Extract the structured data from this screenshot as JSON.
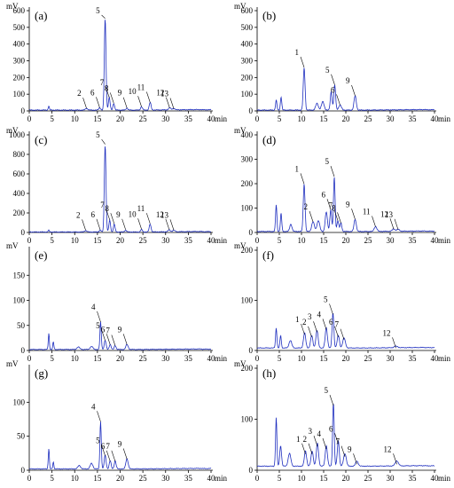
{
  "colors": {
    "trace": "#1f2fbf",
    "axis": "#000000"
  },
  "chart_data": [
    {
      "type": "line",
      "panel_label": "(a)",
      "ylabel": "mV",
      "xlabel": "min",
      "xlim": [
        0,
        40
      ],
      "ylim": [
        0,
        600
      ],
      "xticks": [
        0,
        5,
        10,
        15,
        20,
        25,
        30,
        35,
        40
      ],
      "yticks": [
        0,
        100,
        200,
        300,
        400,
        500,
        600
      ],
      "baseline": 5,
      "peaks": [
        [
          4.3,
          25,
          0.12
        ],
        [
          12.6,
          10,
          0.25
        ],
        [
          15.5,
          14,
          0.2
        ],
        [
          16.7,
          548,
          0.18
        ],
        [
          17.6,
          75,
          0.18
        ],
        [
          18.6,
          40,
          0.18
        ],
        [
          21.5,
          12,
          0.2
        ],
        [
          24.7,
          20,
          0.2
        ],
        [
          26.6,
          45,
          0.2
        ],
        [
          30.9,
          12,
          0.25
        ],
        [
          31.8,
          8,
          0.25
        ]
      ],
      "labels": [
        {
          "text": "2",
          "x": 12.6,
          "y": 10
        },
        {
          "text": "5",
          "x": 16.7,
          "y": 548
        },
        {
          "text": "6",
          "x": 15.5,
          "y": 14
        },
        {
          "text": "7",
          "x": 17.6,
          "y": 75
        },
        {
          "text": "8",
          "x": 18.6,
          "y": 40
        },
        {
          "text": "9",
          "x": 21.5,
          "y": 12
        },
        {
          "text": "10",
          "x": 24.7,
          "y": 20
        },
        {
          "text": "11",
          "x": 26.6,
          "y": 45
        },
        {
          "text": "12",
          "x": 30.9,
          "y": 12
        },
        {
          "text": "13",
          "x": 31.8,
          "y": 8
        }
      ]
    },
    {
      "type": "line",
      "panel_label": "(b)",
      "ylabel": "mV",
      "xlabel": "min",
      "xlim": [
        0,
        40
      ],
      "ylim": [
        0,
        600
      ],
      "xticks": [
        0,
        5,
        10,
        15,
        20,
        25,
        30,
        35,
        40
      ],
      "yticks": [
        0,
        100,
        200,
        300,
        400,
        500,
        600
      ],
      "baseline": 5,
      "peaks": [
        [
          4.3,
          60,
          0.15
        ],
        [
          5.4,
          80,
          0.15
        ],
        [
          10.6,
          255,
          0.2
        ],
        [
          13.5,
          40,
          0.3
        ],
        [
          14.8,
          50,
          0.3
        ],
        [
          16.7,
          110,
          0.2
        ],
        [
          17.5,
          150,
          0.2
        ],
        [
          18.7,
          30,
          0.3
        ],
        [
          22.1,
          85,
          0.25
        ]
      ],
      "labels": [
        {
          "text": "1",
          "x": 10.6,
          "y": 255
        },
        {
          "text": "5",
          "x": 17.5,
          "y": 150
        },
        {
          "text": "6",
          "x": 18.7,
          "y": 30
        },
        {
          "text": "9",
          "x": 22.1,
          "y": 85
        }
      ]
    },
    {
      "type": "line",
      "panel_label": "(c)",
      "ylabel": "mV",
      "xlabel": "min",
      "xlim": [
        0,
        40
      ],
      "ylim": [
        0,
        1000
      ],
      "xticks": [
        0,
        5,
        10,
        15,
        20,
        25,
        30,
        35,
        40
      ],
      "yticks": [
        0,
        200,
        400,
        600,
        800,
        1000
      ],
      "baseline": 5,
      "peaks": [
        [
          4.3,
          20,
          0.12
        ],
        [
          12.4,
          15,
          0.25
        ],
        [
          15.6,
          20,
          0.2
        ],
        [
          16.7,
          895,
          0.18
        ],
        [
          17.7,
          120,
          0.18
        ],
        [
          18.7,
          80,
          0.18
        ],
        [
          21.2,
          20,
          0.2
        ],
        [
          24.7,
          25,
          0.2
        ],
        [
          26.6,
          80,
          0.2
        ],
        [
          30.8,
          20,
          0.25
        ],
        [
          31.8,
          15,
          0.25
        ]
      ],
      "labels": [
        {
          "text": "2",
          "x": 12.4,
          "y": 15
        },
        {
          "text": "5",
          "x": 16.7,
          "y": 895
        },
        {
          "text": "6",
          "x": 15.6,
          "y": 20
        },
        {
          "text": "7",
          "x": 17.7,
          "y": 120
        },
        {
          "text": "8",
          "x": 18.7,
          "y": 80
        },
        {
          "text": "9",
          "x": 21.2,
          "y": 20
        },
        {
          "text": "10",
          "x": 24.7,
          "y": 25
        },
        {
          "text": "11",
          "x": 26.6,
          "y": 80
        },
        {
          "text": "12",
          "x": 30.8,
          "y": 20
        },
        {
          "text": "13",
          "x": 31.8,
          "y": 15
        }
      ]
    },
    {
      "type": "line",
      "panel_label": "(d)",
      "ylabel": "mV",
      "xlabel": "min",
      "xlim": [
        0,
        40
      ],
      "ylim": [
        0,
        400
      ],
      "xticks": [
        0,
        5,
        10,
        15,
        20,
        25,
        30,
        35,
        40
      ],
      "yticks": [
        0,
        100,
        200,
        300,
        400
      ],
      "baseline": 4,
      "peaks": [
        [
          4.3,
          110,
          0.15
        ],
        [
          5.4,
          75,
          0.15
        ],
        [
          7.6,
          30,
          0.25
        ],
        [
          10.6,
          195,
          0.2
        ],
        [
          12.6,
          40,
          0.3
        ],
        [
          13.8,
          45,
          0.3
        ],
        [
          15.6,
          80,
          0.25
        ],
        [
          16.6,
          90,
          0.2
        ],
        [
          17.4,
          225,
          0.18
        ],
        [
          18.2,
          45,
          0.2
        ],
        [
          18.9,
          35,
          0.2
        ],
        [
          22.1,
          50,
          0.25
        ],
        [
          26.7,
          20,
          0.3
        ],
        [
          30.8,
          10,
          0.3
        ],
        [
          31.8,
          8,
          0.3
        ]
      ],
      "labels": [
        {
          "text": "1",
          "x": 10.6,
          "y": 195
        },
        {
          "text": "2",
          "x": 12.6,
          "y": 40
        },
        {
          "text": "5",
          "x": 17.4,
          "y": 225
        },
        {
          "text": "6",
          "x": 16.6,
          "y": 90
        },
        {
          "text": "7",
          "x": 18.2,
          "y": 45
        },
        {
          "text": "8",
          "x": 18.9,
          "y": 35
        },
        {
          "text": "9",
          "x": 22.1,
          "y": 50
        },
        {
          "text": "11",
          "x": 26.7,
          "y": 20
        },
        {
          "text": "12",
          "x": 30.8,
          "y": 10
        },
        {
          "text": "13",
          "x": 31.8,
          "y": 8
        }
      ]
    },
    {
      "type": "line",
      "panel_label": "(e)",
      "ylabel": "mV",
      "xlabel": "min",
      "xlim": [
        0,
        40
      ],
      "ylim": [
        0,
        200
      ],
      "xticks": [
        0,
        5,
        10,
        15,
        20,
        25,
        30,
        35,
        40
      ],
      "yticks": [
        0,
        50,
        100,
        150
      ],
      "baseline": 2,
      "peaks": [
        [
          4.3,
          32,
          0.12
        ],
        [
          5.3,
          15,
          0.12
        ],
        [
          10.8,
          5,
          0.3
        ],
        [
          13.7,
          6,
          0.3
        ],
        [
          15.7,
          55,
          0.15
        ],
        [
          16.7,
          18,
          0.2
        ],
        [
          17.8,
          10,
          0.2
        ],
        [
          18.9,
          8,
          0.2
        ],
        [
          21.5,
          10,
          0.25
        ]
      ],
      "labels": [
        {
          "text": "4",
          "x": 15.7,
          "y": 55
        },
        {
          "text": "5",
          "x": 16.7,
          "y": 18
        },
        {
          "text": "6",
          "x": 17.8,
          "y": 10
        },
        {
          "text": "7",
          "x": 18.9,
          "y": 8
        },
        {
          "text": "9",
          "x": 21.5,
          "y": 10
        }
      ]
    },
    {
      "type": "line",
      "panel_label": "(f)",
      "ylabel": "mV",
      "xlabel": "min",
      "xlim": [
        0,
        40
      ],
      "ylim": [
        0,
        200
      ],
      "xticks": [
        0,
        5,
        10,
        15,
        20,
        25,
        30,
        35,
        40
      ],
      "yticks": [
        0,
        100,
        200
      ],
      "baseline": 5,
      "peaks": [
        [
          4.3,
          40,
          0.15
        ],
        [
          5.3,
          25,
          0.15
        ],
        [
          7.5,
          15,
          0.3
        ],
        [
          10.7,
          30,
          0.25
        ],
        [
          12.3,
          25,
          0.25
        ],
        [
          13.5,
          35,
          0.25
        ],
        [
          15.6,
          40,
          0.25
        ],
        [
          17.1,
          70,
          0.2
        ],
        [
          18.3,
          25,
          0.25
        ],
        [
          19.6,
          20,
          0.3
        ],
        [
          31.3,
          3,
          0.4
        ]
      ],
      "labels": [
        {
          "text": "1",
          "x": 10.7,
          "y": 30
        },
        {
          "text": "2",
          "x": 12.3,
          "y": 25
        },
        {
          "text": "3",
          "x": 13.5,
          "y": 35
        },
        {
          "text": "4",
          "x": 15.6,
          "y": 40
        },
        {
          "text": "5",
          "x": 17.1,
          "y": 70
        },
        {
          "text": "6",
          "x": 18.3,
          "y": 25
        },
        {
          "text": "7",
          "x": 19.6,
          "y": 20
        },
        {
          "text": "12",
          "x": 31.3,
          "y": 3
        }
      ]
    },
    {
      "type": "line",
      "panel_label": "(g)",
      "ylabel": "mV",
      "xlabel": "min",
      "xlim": [
        0,
        40
      ],
      "ylim": [
        0,
        150
      ],
      "xticks": [
        0,
        5,
        10,
        15,
        20,
        25,
        30,
        35,
        40
      ],
      "yticks": [
        0,
        50,
        100
      ],
      "baseline": 2,
      "peaks": [
        [
          4.3,
          30,
          0.12
        ],
        [
          5.3,
          10,
          0.12
        ],
        [
          11.0,
          5,
          0.3
        ],
        [
          13.7,
          8,
          0.3
        ],
        [
          15.7,
          70,
          0.15
        ],
        [
          16.7,
          20,
          0.2
        ],
        [
          17.8,
          12,
          0.2
        ],
        [
          18.9,
          12,
          0.2
        ],
        [
          21.5,
          15,
          0.25
        ]
      ],
      "labels": [
        {
          "text": "4",
          "x": 15.7,
          "y": 70
        },
        {
          "text": "5",
          "x": 16.7,
          "y": 20
        },
        {
          "text": "6",
          "x": 17.8,
          "y": 12
        },
        {
          "text": "7",
          "x": 18.9,
          "y": 12
        },
        {
          "text": "9",
          "x": 21.5,
          "y": 15
        }
      ]
    },
    {
      "type": "line",
      "panel_label": "(h)",
      "ylabel": "mV",
      "xlabel": "min",
      "xlim": [
        0,
        40
      ],
      "ylim": [
        0,
        200
      ],
      "xticks": [
        0,
        5,
        10,
        15,
        20,
        25,
        30,
        35,
        40
      ],
      "yticks": [
        0,
        100,
        200
      ],
      "baseline": 8,
      "peaks": [
        [
          4.3,
          95,
          0.15
        ],
        [
          5.3,
          40,
          0.2
        ],
        [
          7.3,
          25,
          0.3
        ],
        [
          10.9,
          30,
          0.25
        ],
        [
          12.4,
          30,
          0.25
        ],
        [
          13.6,
          45,
          0.25
        ],
        [
          15.6,
          40,
          0.25
        ],
        [
          17.2,
          125,
          0.18
        ],
        [
          18.3,
          50,
          0.22
        ],
        [
          19.8,
          25,
          0.3
        ],
        [
          22.5,
          10,
          0.3
        ],
        [
          31.5,
          10,
          0.35
        ]
      ],
      "labels": [
        {
          "text": "1",
          "x": 10.9,
          "y": 30
        },
        {
          "text": "2",
          "x": 12.4,
          "y": 30
        },
        {
          "text": "3",
          "x": 13.6,
          "y": 45
        },
        {
          "text": "4",
          "x": 15.6,
          "y": 40
        },
        {
          "text": "5",
          "x": 17.2,
          "y": 125
        },
        {
          "text": "6",
          "x": 18.3,
          "y": 50
        },
        {
          "text": "7",
          "x": 19.8,
          "y": 25
        },
        {
          "text": "9",
          "x": 22.5,
          "y": 10
        },
        {
          "text": "12",
          "x": 31.5,
          "y": 10
        }
      ]
    }
  ]
}
